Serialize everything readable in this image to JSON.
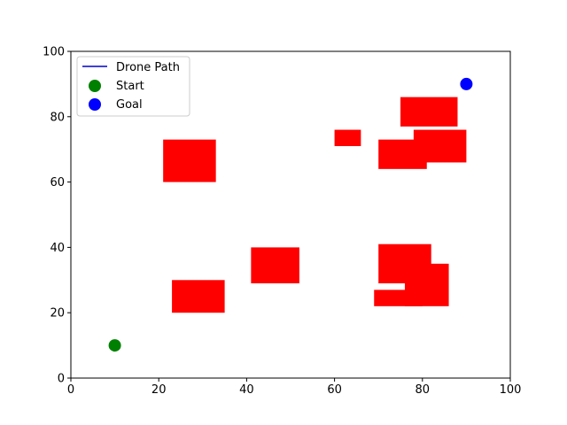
{
  "chart_data": {
    "type": "scatter",
    "title": "",
    "xlabel": "",
    "ylabel": "",
    "xlim": [
      0,
      100
    ],
    "ylim": [
      0,
      100
    ],
    "x_ticks": [
      0,
      20,
      40,
      60,
      80,
      100
    ],
    "y_ticks": [
      0,
      20,
      40,
      60,
      80,
      100
    ],
    "grid": false,
    "legend_position": "top-left",
    "obstacle_color": "#ff0000",
    "obstacles": [
      {
        "x0": 21,
        "y0": 60,
        "x1": 33,
        "y1": 73
      },
      {
        "x0": 23,
        "y0": 20,
        "x1": 35,
        "y1": 30
      },
      {
        "x0": 41,
        "y0": 29,
        "x1": 52,
        "y1": 40
      },
      {
        "x0": 60,
        "y0": 71,
        "x1": 66,
        "y1": 76
      },
      {
        "x0": 75,
        "y0": 77,
        "x1": 88,
        "y1": 86
      },
      {
        "x0": 70,
        "y0": 64,
        "x1": 81,
        "y1": 73
      },
      {
        "x0": 78,
        "y0": 66,
        "x1": 90,
        "y1": 76
      },
      {
        "x0": 70,
        "y0": 29,
        "x1": 82,
        "y1": 41
      },
      {
        "x0": 69,
        "y0": 22,
        "x1": 80,
        "y1": 27
      },
      {
        "x0": 76,
        "y0": 22,
        "x1": 86,
        "y1": 35
      }
    ],
    "series": [
      {
        "name": "Drone Path",
        "kind": "line",
        "color": "#0000cc",
        "x": [],
        "y": []
      },
      {
        "name": "Start",
        "kind": "point",
        "color": "#008000",
        "x": [
          10
        ],
        "y": [
          10
        ]
      },
      {
        "name": "Goal",
        "kind": "point",
        "color": "#0000ff",
        "x": [
          90
        ],
        "y": [
          90
        ]
      }
    ]
  }
}
